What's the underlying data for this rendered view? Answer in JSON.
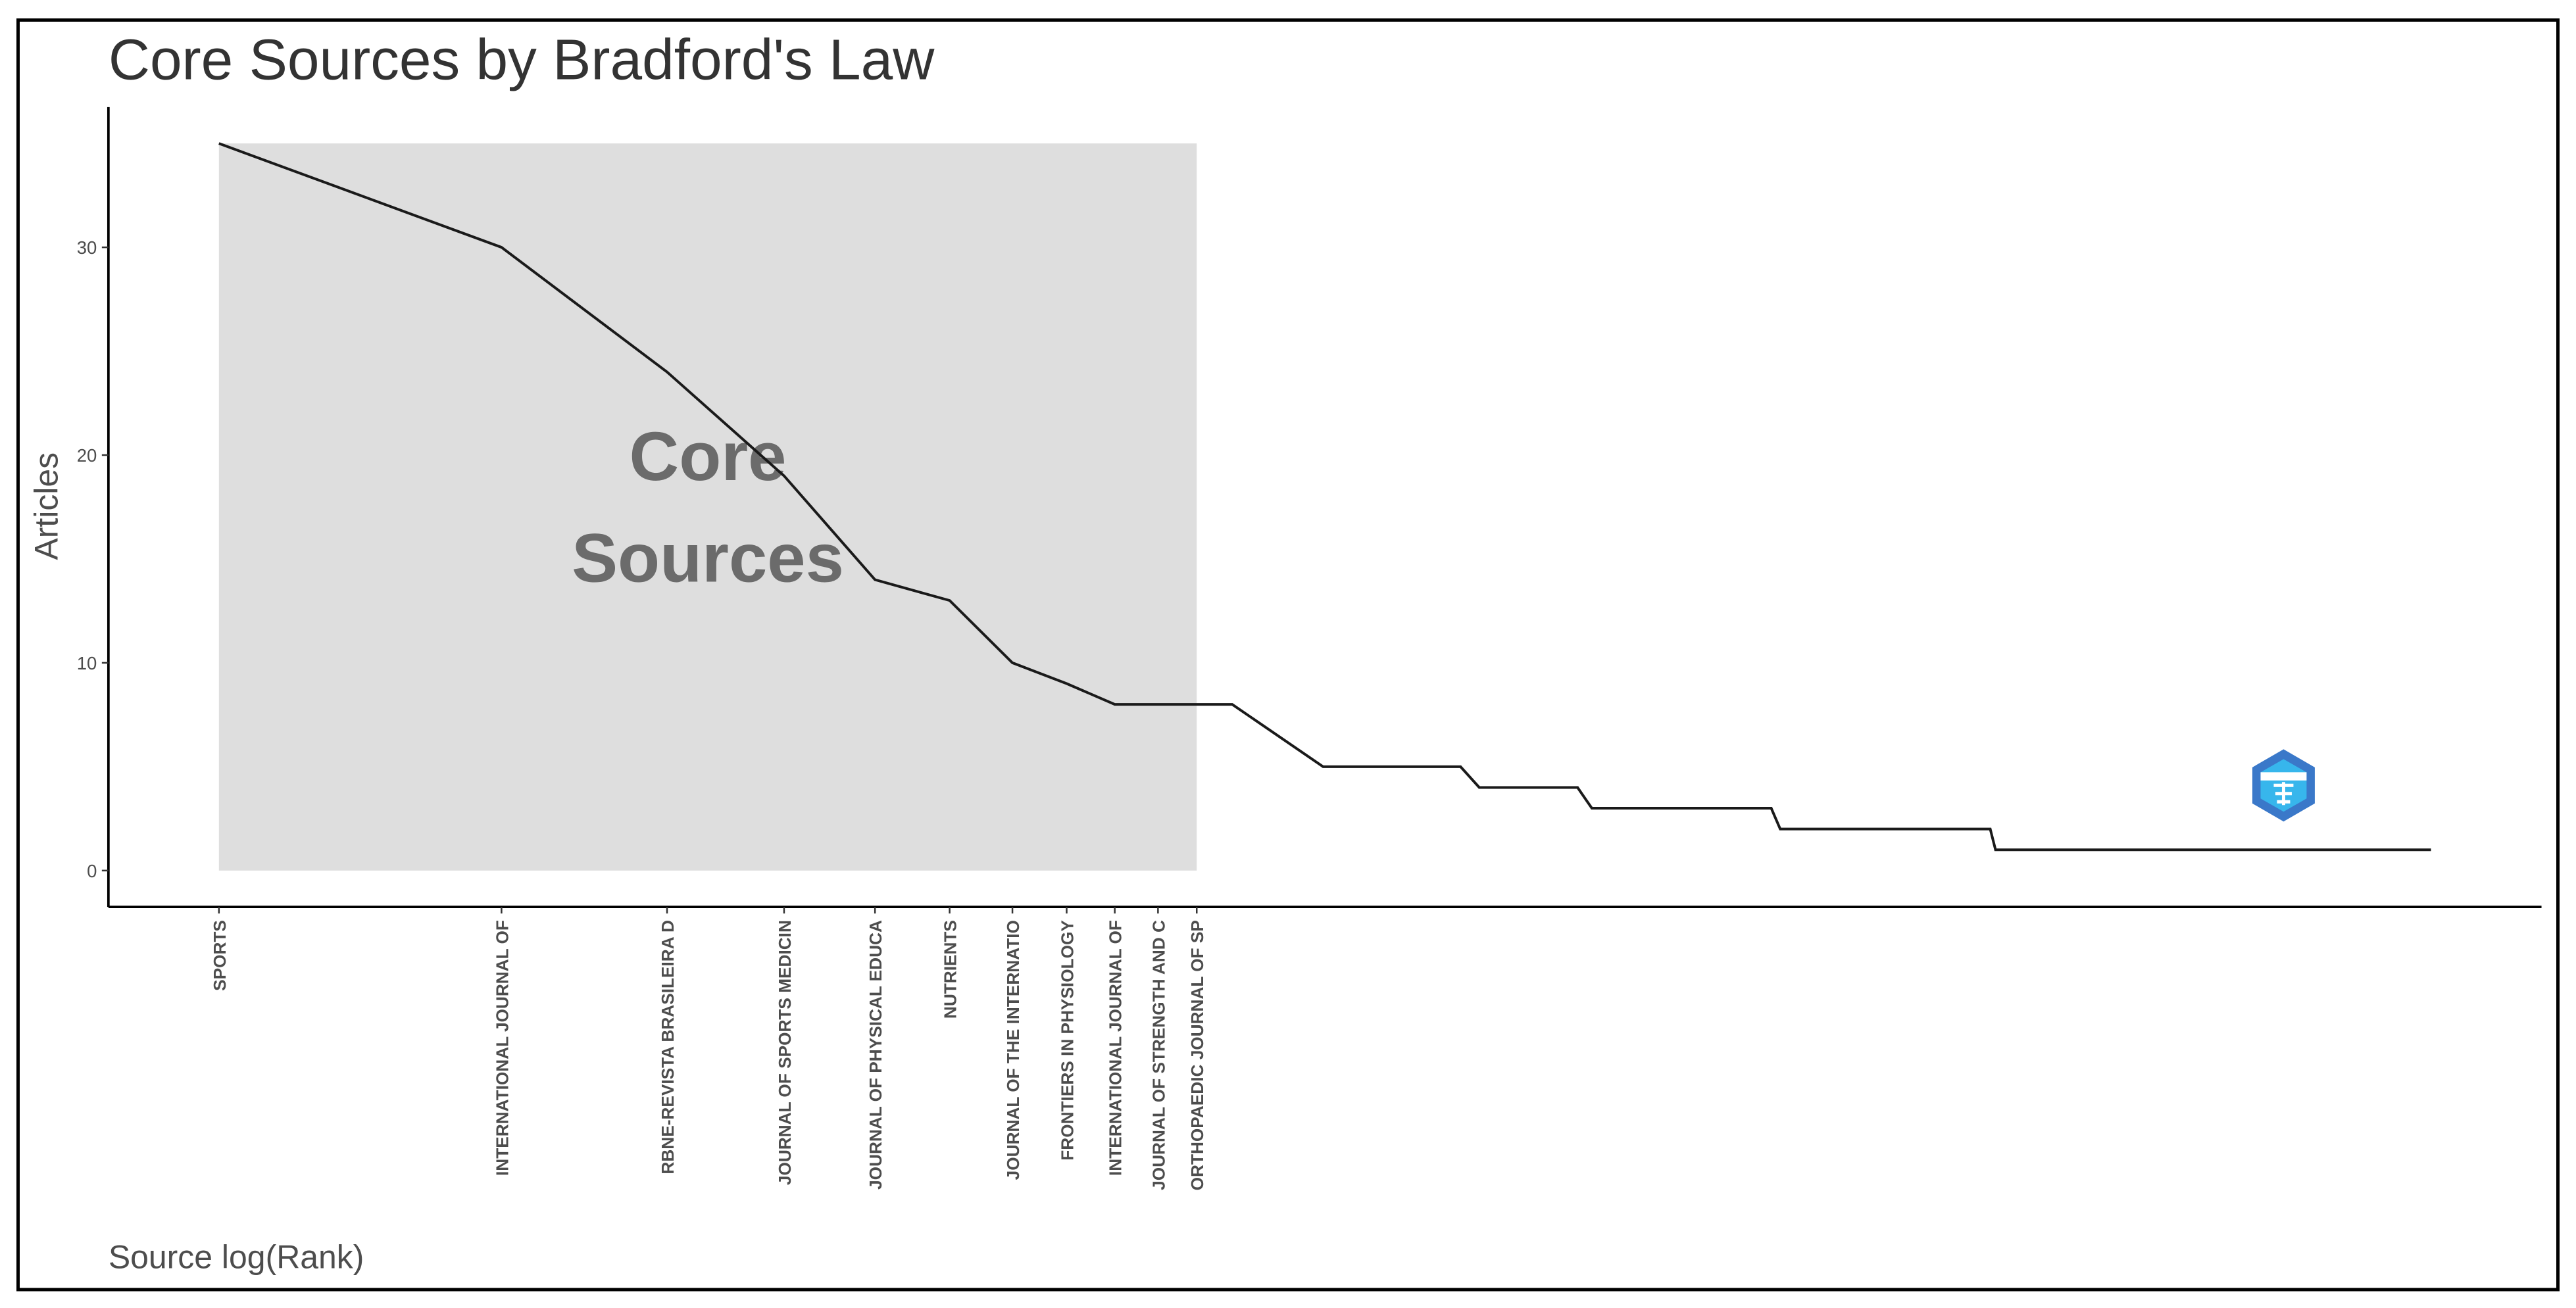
{
  "chart_data": {
    "type": "line",
    "title": "Core Sources by Bradford's Law",
    "x_label": "Source log(Rank)",
    "y_label": "Articles",
    "annotation": [
      "Core",
      "Sources"
    ],
    "x": [
      0,
      0.693,
      1.099,
      1.386,
      1.609,
      1.792,
      1.946,
      2.079,
      2.197,
      2.303,
      2.398,
      2.485,
      2.708,
      3.045,
      3.091,
      3.332,
      3.367,
      3.807,
      3.829,
      4.344,
      4.357,
      5.425
    ],
    "values": [
      35,
      30,
      24,
      19,
      14,
      13,
      10,
      9,
      8,
      8,
      8,
      8,
      5,
      5,
      4,
      4,
      3,
      3,
      2,
      2,
      1,
      1
    ],
    "color": "#1a1a1a",
    "core_xlim": [
      0,
      2.398
    ],
    "core_ylim": [
      0,
      35
    ],
    "core_color": "#dedede",
    "xlim": [
      -0.271,
      5.696
    ],
    "ylim": [
      -1.75,
      36.75
    ],
    "xticks": [
      {
        "value": 0,
        "label": "SPORTS"
      },
      {
        "value": 0.693,
        "label": "INTERNATIONAL JOURNAL OF"
      },
      {
        "value": 1.099,
        "label": "RBNE-REVISTA BRASILEIRA D"
      },
      {
        "value": 1.386,
        "label": "JOURNAL OF SPORTS MEDICIN"
      },
      {
        "value": 1.609,
        "label": "JOURNAL OF PHYSICAL EDUCA"
      },
      {
        "value": 1.792,
        "label": "NUTRIENTS"
      },
      {
        "value": 1.946,
        "label": "JOURNAL OF THE INTERNATIO"
      },
      {
        "value": 2.079,
        "label": "FRONTIERS IN PHYSIOLOGY"
      },
      {
        "value": 2.197,
        "label": "INTERNATIONAL JOURNAL OF"
      },
      {
        "value": 2.303,
        "label": "JOURNAL OF STRENGTH AND C"
      },
      {
        "value": 2.398,
        "label": "ORTHOPAEDIC JOURNAL OF SP"
      }
    ],
    "yticks": [
      0,
      10,
      20,
      30
    ],
    "grid": false
  }
}
